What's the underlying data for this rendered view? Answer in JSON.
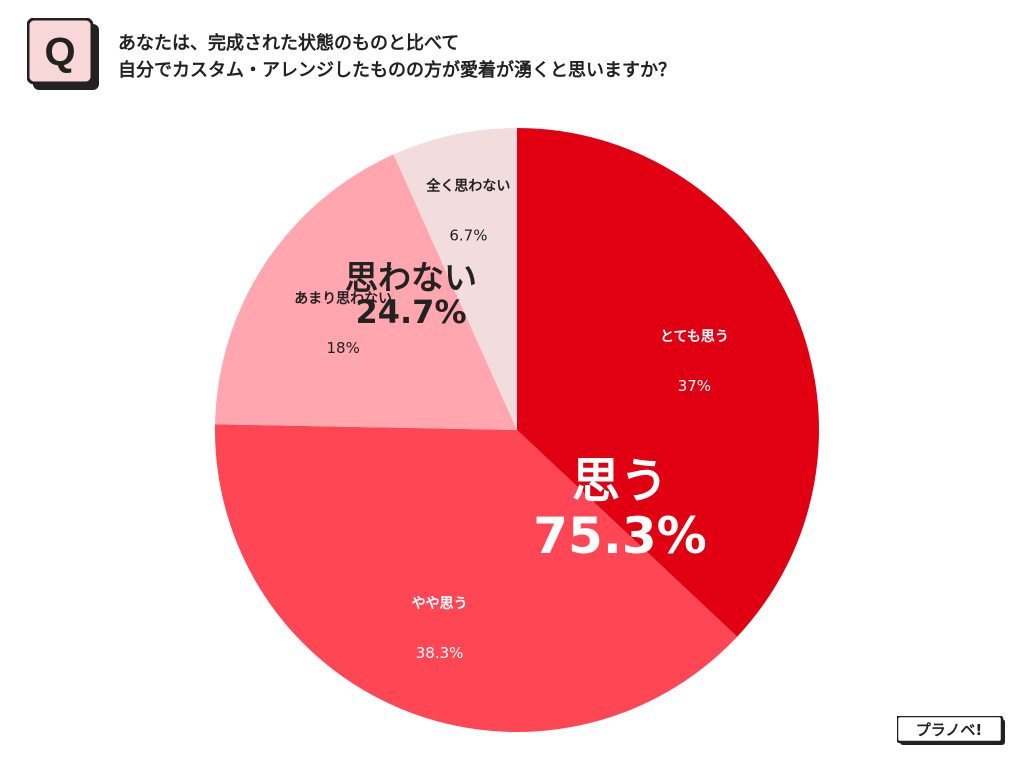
{
  "header": {
    "badge": "Q",
    "title_line1": "あなたは、完成された状態のものと比べて",
    "title_line2": "自分でカスタム・アレンジしたものの方が愛着が湧くと思いますか？"
  },
  "chart_data": {
    "type": "pie",
    "start_angle": "12 o'clock, clockwise",
    "slices": [
      {
        "label": "とても思う",
        "value": 37,
        "display": "37%",
        "color": "#e00012",
        "text_color": "#ffffff"
      },
      {
        "label": "やや思う",
        "value": 38.3,
        "display": "38.3%",
        "color": "#ff4655",
        "text_color": "#ffffff"
      },
      {
        "label": "あまり思わない",
        "value": 18,
        "display": "18%",
        "color": "#ffa6ae",
        "text_color": "#222222"
      },
      {
        "label": "全く思わない",
        "value": 6.7,
        "display": "6.7%",
        "color": "#f3dcdd",
        "text_color": "#222222"
      }
    ],
    "groups": [
      {
        "label": "思う",
        "display": "75.3%",
        "text_color": "#ffffff"
      },
      {
        "label": "思わない",
        "display": "24.7%",
        "text_color": "#222222"
      }
    ]
  },
  "logo": {
    "text": "プラノベ!"
  }
}
